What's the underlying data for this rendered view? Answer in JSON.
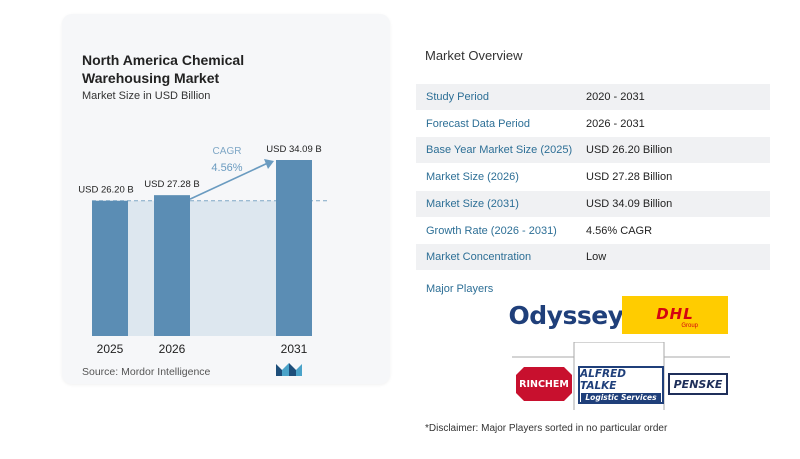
{
  "chart_data": {
    "type": "bar",
    "title": "North America Chemical Warehousing Market",
    "subtitle": "Market Size in USD Billion",
    "categories": [
      "2025",
      "2026",
      "2031"
    ],
    "values": [
      26.2,
      27.28,
      34.09
    ],
    "value_labels": [
      "USD 26.20 B",
      "USD 27.28 B",
      "USD 34.09 B"
    ],
    "cagr_label": "CAGR",
    "cagr_value": "4.56%",
    "colors": {
      "bar": "#5b8db4",
      "bar_top": "#4e80a8",
      "shade": "#dde7ef",
      "arrow": "#6a9bc0"
    }
  },
  "source": "Source: Mordor Intelligence",
  "overview": {
    "title": "Market Overview",
    "rows": [
      {
        "label": "Study Period",
        "value": "2020 - 2031"
      },
      {
        "label": "Forecast Data Period",
        "value": "2026 - 2031"
      },
      {
        "label": "Base Year Market Size (2025)",
        "value": "USD 26.20 Billion"
      },
      {
        "label": "Market Size (2026)",
        "value": "USD 27.28 Billion"
      },
      {
        "label": "Market Size (2031)",
        "value": "USD 34.09 Billion"
      },
      {
        "label": "Growth Rate (2026 - 2031)",
        "value": "4.56% CAGR"
      },
      {
        "label": "Market Concentration",
        "value": "Low"
      }
    ]
  },
  "players": {
    "title": "Major Players",
    "logos": {
      "odyssey": "Odyssey",
      "dhl": "DHL",
      "dhl_sub": "Group",
      "rinchem": "RINCHEM",
      "talke": "ALFRED TALKE",
      "talke_sub": "Logistic Services",
      "penske": "PENSKE"
    }
  },
  "disclaimer": "*Disclaimer: Major Players sorted in no particular order"
}
